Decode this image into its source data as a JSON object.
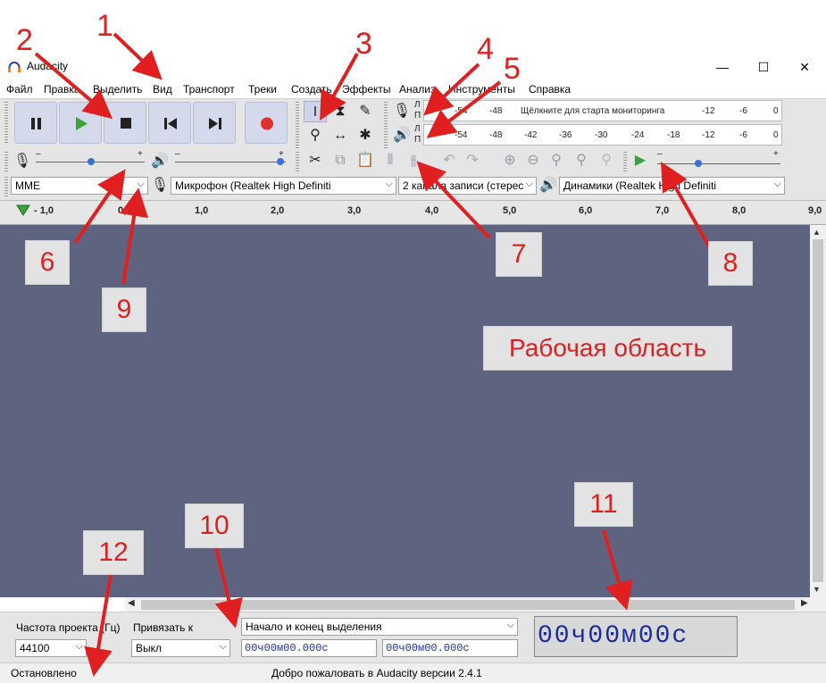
{
  "window": {
    "title": "Audacity",
    "minimize_glyph": "—",
    "maximize_glyph": "☐",
    "close_glyph": "✕"
  },
  "menu": [
    "Файл",
    "Правка",
    "Выделить",
    "Вид",
    "Транспорт",
    "Треки",
    "Создать",
    "Эффекты",
    "Анализ",
    "Инструменты",
    "Справка"
  ],
  "meters": {
    "record_channels": [
      "Л",
      "П"
    ],
    "play_channels": [
      "Л",
      "П"
    ],
    "record_scale": [
      "-54",
      "-48",
      "Щёлкните для старта мониторинга",
      "-12",
      "-6",
      "0"
    ],
    "play_scale": [
      "-54",
      "-48",
      "-42",
      "-36",
      "-30",
      "-24",
      "-18",
      "-12",
      "-6",
      "0"
    ],
    "record_slider_level": 0.0,
    "play_slider_level": 0.0
  },
  "mixer": {
    "rec_volume": 0.5,
    "play_volume": 1.0,
    "minus": "–",
    "plus": "+"
  },
  "device": {
    "host": "MME",
    "input": "Микрофон (Realtek High Definiti",
    "channels": "2  канала записи (стерес",
    "output": "Динамики (Realtek High Definiti"
  },
  "timeline": {
    "ticks": [
      "- 1,0",
      "0,0",
      "1,0",
      "2,0",
      "3,0",
      "4,0",
      "5,0",
      "6,0",
      "7,0",
      "8,0",
      "9,0"
    ]
  },
  "workspace": {
    "label": "Рабочая область"
  },
  "selection_toolbar": {
    "rate_label": "Частота проекта (Гц)",
    "rate_value": "44100",
    "snap_label": "Привязать к",
    "snap_value": "Выкл",
    "selection_mode": "Начало и конец выделения",
    "start_time": "00ч00м00.000с",
    "end_time": "00ч00м00.000с",
    "audio_position": "00ч00м00с"
  },
  "status": {
    "left": "Остановлено",
    "right": "Добро пожаловать в Audacity версии 2.4.1"
  },
  "annotations": [
    "1",
    "2",
    "3",
    "4",
    "5",
    "6",
    "7",
    "8",
    "9",
    "10",
    "11",
    "12"
  ],
  "colors": {
    "workspace": "#5e6480",
    "annotation": "#e02020",
    "play": "#3aa33a",
    "record": "#e03030"
  }
}
